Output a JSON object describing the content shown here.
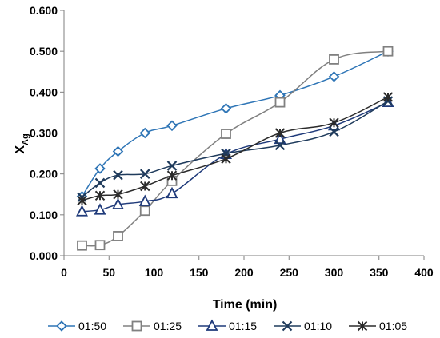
{
  "chart_data": {
    "type": "line",
    "title": "",
    "xlabel": "Time (min)",
    "ylabel": {
      "main": "X",
      "subscript": "Ag"
    },
    "xlim": [
      0,
      400
    ],
    "ylim": [
      0.0,
      0.6
    ],
    "x_ticks": [
      "0",
      "50",
      "100",
      "150",
      "200",
      "250",
      "300",
      "350",
      "400"
    ],
    "y_ticks": [
      "0.000",
      "0.100",
      "0.200",
      "0.300",
      "0.400",
      "0.500",
      "0.600"
    ],
    "grid": false,
    "legend_position": "bottom",
    "series": [
      {
        "name": "01:50",
        "marker": "diamond",
        "color": "#2e75b6",
        "x": [
          20,
          40,
          60,
          90,
          120,
          180,
          240,
          300,
          360
        ],
        "y": [
          0.145,
          0.213,
          0.255,
          0.3,
          0.318,
          0.36,
          0.392,
          0.438,
          0.5
        ]
      },
      {
        "name": "01:25",
        "marker": "square",
        "color": "#808080",
        "x": [
          20,
          40,
          60,
          90,
          120,
          180,
          240,
          300,
          360
        ],
        "y": [
          0.025,
          0.026,
          0.048,
          0.11,
          0.183,
          0.298,
          0.375,
          0.48,
          0.5
        ]
      },
      {
        "name": "01:15",
        "marker": "triangle",
        "color": "#1f3a7a",
        "x": [
          20,
          40,
          60,
          90,
          120,
          180,
          240,
          300,
          360
        ],
        "y": [
          0.108,
          0.112,
          0.125,
          0.133,
          0.152,
          0.248,
          0.285,
          0.318,
          0.375
        ]
      },
      {
        "name": "01:10",
        "marker": "x",
        "color": "#1f3b5c",
        "x": [
          20,
          40,
          60,
          90,
          120,
          180,
          240,
          300,
          360
        ],
        "y": [
          0.143,
          0.178,
          0.197,
          0.2,
          0.22,
          0.25,
          0.27,
          0.303,
          0.378
        ]
      },
      {
        "name": "01:05",
        "marker": "star",
        "color": "#2b2b2b",
        "x": [
          20,
          40,
          60,
          90,
          120,
          180,
          240,
          300,
          360
        ],
        "y": [
          0.135,
          0.147,
          0.15,
          0.17,
          0.196,
          0.237,
          0.3,
          0.325,
          0.388
        ]
      }
    ]
  }
}
